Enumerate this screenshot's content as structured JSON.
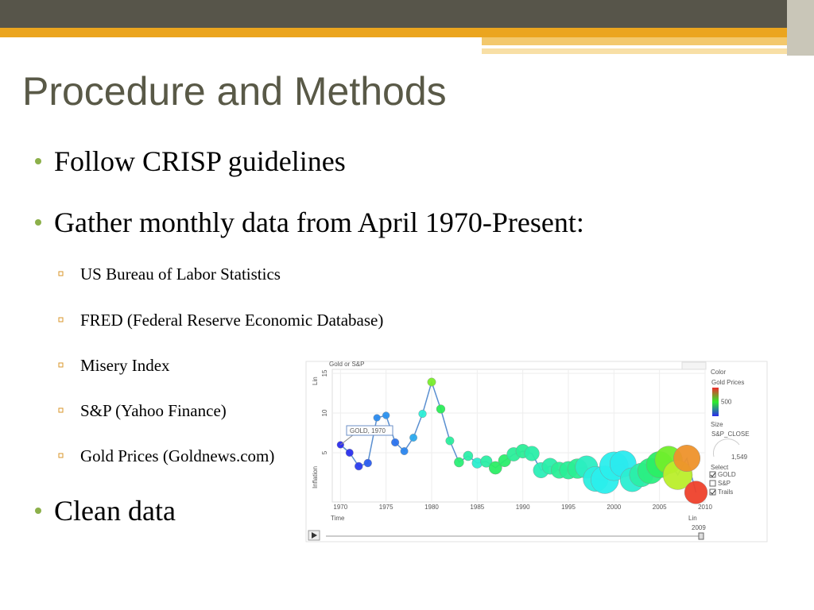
{
  "slide": {
    "title": "Procedure and Methods",
    "bullets": [
      {
        "text": "Follow CRISP guidelines"
      },
      {
        "text": "Gather monthly data from April 1970-Present:",
        "items": [
          "US Bureau of Labor Statistics",
          "FRED (Federal Reserve Economic Database)",
          "Misery Index",
          "S&P (Yahoo Finance)",
          "Gold Prices (Goldnews.com)"
        ]
      },
      {
        "text": "Clean data"
      }
    ]
  },
  "chart_data": {
    "type": "bubble",
    "title": "Gold or S&P",
    "x_label": "Time",
    "y_label": "Inflation",
    "x_scale": "Lin",
    "y_scale": "Lin",
    "annotation": "GOLD, 1970",
    "current": "2009",
    "xlim": [
      1969.1,
      2010
    ],
    "xticks": [
      1970,
      1975,
      1980,
      1985,
      1990,
      1995,
      2000,
      2005,
      2010
    ],
    "ylim": [
      -1.2,
      15.5
    ],
    "yticks": [
      5,
      10,
      15
    ],
    "colorlim": [
      35,
      1000
    ],
    "legend": {
      "color_label": "Color",
      "color_by": "Gold Prices",
      "color_tick": 500,
      "size_label": "Size",
      "size_by": "S&P_CLOSE",
      "size_tick": {
        "value": 1549,
        "label": "1,549"
      },
      "select_label": "Select",
      "options": [
        "GOLD",
        "S&P",
        "Trails"
      ],
      "checked": [
        true,
        false,
        true
      ]
    },
    "series": [
      {
        "name": "GOLD",
        "x": [
          1970,
          1971,
          1972,
          1973,
          1974,
          1975,
          1976,
          1977,
          1978,
          1979,
          1980,
          1981,
          1982,
          1983,
          1984,
          1985,
          1986,
          1987,
          1988,
          1989,
          1990,
          1991,
          1992,
          1993,
          1994,
          1995,
          1996,
          1997,
          1998,
          1999,
          2000,
          2001,
          2002,
          2003,
          2004,
          2005,
          2006,
          2007,
          2008,
          2009
        ],
        "values": [
          6.0,
          5.0,
          3.3,
          3.7,
          9.4,
          9.7,
          6.3,
          5.2,
          6.9,
          9.9,
          13.9,
          10.5,
          6.5,
          3.8,
          4.6,
          3.7,
          3.9,
          3.1,
          4.0,
          4.8,
          5.2,
          4.9,
          2.8,
          3.3,
          2.8,
          2.8,
          3.0,
          3.2,
          1.7,
          1.6,
          3.3,
          3.6,
          1.6,
          2.2,
          2.7,
          3.5,
          4.1,
          2.2,
          4.3,
          0.0
        ],
        "sizes": [
          83,
          98,
          109,
          107,
          82,
          86,
          102,
          98,
          96,
          104,
          118,
          128,
          120,
          160,
          160,
          186,
          236,
          286,
          265,
          322,
          334,
          376,
          415,
          451,
          460,
          541,
          670,
          873,
          1085,
          1327,
          1427,
          1194,
          993,
          965,
          1130,
          1207,
          1310,
          1477,
          1220,
          900
        ],
        "color_values": [
          36,
          41,
          58,
          97,
          154,
          161,
          125,
          148,
          193,
          306,
          615,
          460,
          376,
          424,
          361,
          317,
          368,
          447,
          437,
          381,
          383,
          362,
          344,
          360,
          384,
          384,
          388,
          331,
          294,
          279,
          279,
          271,
          310,
          363,
          409,
          445,
          604,
          695,
          872,
          972
        ]
      }
    ]
  }
}
